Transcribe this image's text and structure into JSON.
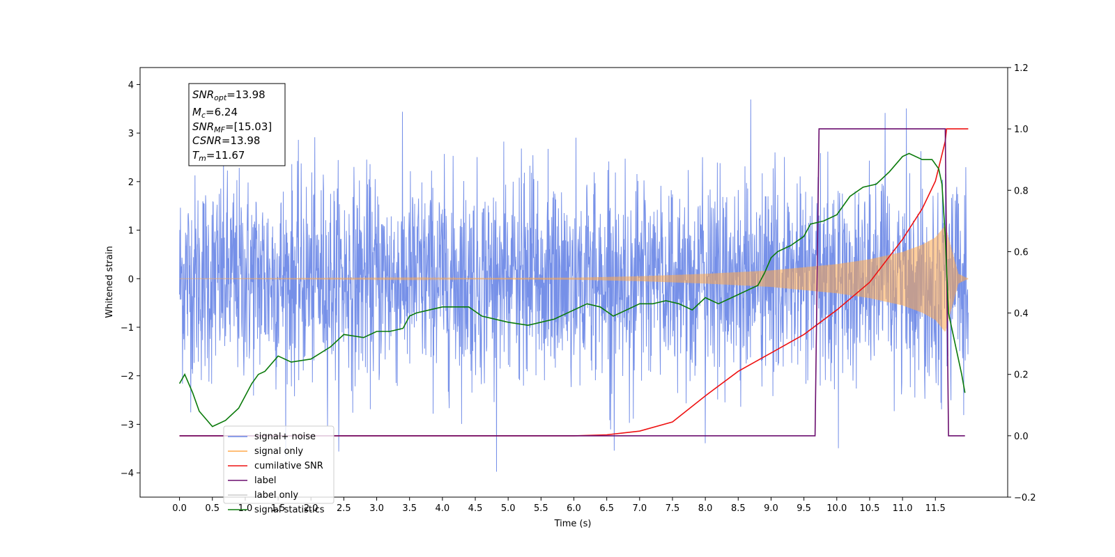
{
  "chart_data": {
    "type": "line",
    "xlabel": "Time (s)",
    "ylabel": "Whitened strain",
    "xlim": [
      -0.6,
      12.6
    ],
    "ylim": [
      -4.5,
      4.35
    ],
    "y2lim": [
      -0.2,
      1.2
    ],
    "x_ticks": [
      "0.0",
      "0.5",
      "1.0",
      "1.5",
      "2.0",
      "2.5",
      "3.0",
      "3.5",
      "4.0",
      "4.5",
      "5.0",
      "5.5",
      "6.0",
      "6.5",
      "7.0",
      "7.5",
      "8.0",
      "8.5",
      "9.0",
      "9.5",
      "10.0",
      "10.5",
      "11.0",
      "11.5"
    ],
    "y_ticks": [
      "4",
      "3",
      "2",
      "1",
      "0",
      "−1",
      "−2",
      "−3",
      "−4"
    ],
    "y2_ticks": [
      "1.2",
      "1.0",
      "0.8",
      "0.6",
      "0.4",
      "0.2",
      "0.0",
      "−0.2"
    ],
    "grid": false,
    "legend_position": "lower-left",
    "annotation": {
      "snr_opt": {
        "base": "SNR",
        "sub": "opt",
        "value": "=13.98"
      },
      "mc": {
        "base": "M",
        "sub": "c",
        "value": "=6.24"
      },
      "snr_mf": {
        "base": "SNR",
        "sub": "MF",
        "value": "=[15.03]"
      },
      "csnr": {
        "base": "CSNR",
        "value": "=13.98"
      },
      "tm": {
        "base": "T",
        "sub": "m",
        "value": "=11.67"
      }
    },
    "series": [
      {
        "name": "signal+ noise",
        "axis": "left",
        "color": "#6a87e6",
        "kind": "noise",
        "x_range": [
          0.0,
          12.0
        ],
        "typical_amplitude": [
          -2.2,
          2.3
        ],
        "peak_amplitude": [
          -4.1,
          3.95
        ]
      },
      {
        "name": "signal only",
        "axis": "left",
        "color": "#ffa84a",
        "kind": "chirp",
        "x_range": [
          0.0,
          12.0
        ],
        "envelope": [
          [
            0.0,
            0.0
          ],
          [
            6.0,
            0.02
          ],
          [
            7.0,
            0.05
          ],
          [
            8.0,
            0.1
          ],
          [
            9.0,
            0.17
          ],
          [
            10.0,
            0.3
          ],
          [
            10.5,
            0.4
          ],
          [
            11.0,
            0.55
          ],
          [
            11.3,
            0.7
          ],
          [
            11.5,
            0.85
          ],
          [
            11.65,
            1.1
          ],
          [
            11.75,
            0.6
          ],
          [
            11.85,
            0.1
          ],
          [
            12.0,
            0.0
          ]
        ]
      },
      {
        "name": "cumilative SNR",
        "axis": "right",
        "color": "#ee1111",
        "x": [
          0.0,
          6.0,
          6.5,
          7.0,
          7.5,
          8.0,
          8.5,
          9.0,
          9.5,
          10.0,
          10.5,
          11.0,
          11.3,
          11.5,
          11.65,
          11.67,
          12.0
        ],
        "y": [
          0.0,
          0.0,
          0.003,
          0.015,
          0.045,
          0.13,
          0.21,
          0.27,
          0.33,
          0.41,
          0.5,
          0.64,
          0.74,
          0.83,
          0.96,
          1.0,
          1.0
        ]
      },
      {
        "name": "label",
        "axis": "right",
        "color": "#6a0d6e",
        "x": [
          0.0,
          9.67,
          9.73,
          11.65,
          11.7,
          11.95
        ],
        "y": [
          0.0,
          0.0,
          1.0,
          1.0,
          0.0,
          0.0
        ]
      },
      {
        "name": "label only",
        "axis": "right",
        "color": "#cccccc",
        "hidden": true
      },
      {
        "name": "signal statistics",
        "axis": "right",
        "color": "#0a7a0a",
        "x": [
          0.0,
          0.08,
          0.2,
          0.3,
          0.5,
          0.7,
          0.9,
          1.0,
          1.1,
          1.2,
          1.3,
          1.5,
          1.7,
          2.0,
          2.3,
          2.5,
          2.8,
          3.0,
          3.2,
          3.4,
          3.5,
          3.6,
          3.8,
          4.0,
          4.2,
          4.4,
          4.6,
          5.0,
          5.3,
          5.5,
          5.7,
          6.0,
          6.2,
          6.4,
          6.6,
          6.8,
          7.0,
          7.2,
          7.4,
          7.6,
          7.8,
          8.0,
          8.2,
          8.4,
          8.6,
          8.8,
          8.9,
          9.0,
          9.1,
          9.3,
          9.5,
          9.6,
          9.8,
          10.0,
          10.2,
          10.4,
          10.6,
          10.8,
          11.0,
          11.1,
          11.3,
          11.45,
          11.55,
          11.6,
          11.65,
          11.7,
          11.8,
          11.9,
          11.95
        ],
        "y": [
          0.17,
          0.2,
          0.14,
          0.08,
          0.03,
          0.05,
          0.09,
          0.13,
          0.17,
          0.2,
          0.21,
          0.26,
          0.24,
          0.25,
          0.29,
          0.33,
          0.32,
          0.34,
          0.34,
          0.35,
          0.39,
          0.4,
          0.41,
          0.42,
          0.42,
          0.42,
          0.39,
          0.37,
          0.36,
          0.37,
          0.38,
          0.41,
          0.43,
          0.42,
          0.39,
          0.41,
          0.43,
          0.43,
          0.44,
          0.43,
          0.41,
          0.45,
          0.43,
          0.45,
          0.47,
          0.49,
          0.53,
          0.58,
          0.6,
          0.62,
          0.65,
          0.69,
          0.7,
          0.72,
          0.78,
          0.81,
          0.82,
          0.86,
          0.91,
          0.92,
          0.9,
          0.9,
          0.87,
          0.82,
          0.65,
          0.4,
          0.3,
          0.2,
          0.14
        ]
      }
    ]
  }
}
